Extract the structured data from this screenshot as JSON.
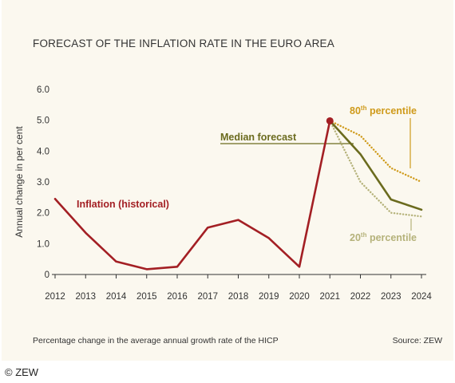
{
  "title": "FORECAST OF THE INFLATION RATE IN THE EURO AREA",
  "note": "Percentage change in the average annual growth rate of the HICP",
  "source": "Source: ZEW",
  "copyright": "© ZEW",
  "colors": {
    "background": "#fbf8ef",
    "historical": "#a31f24",
    "median": "#6b6b1e",
    "p80": "#cf9a1a",
    "p20": "#b5b27a",
    "axis": "#333333"
  },
  "chart_data": {
    "type": "line",
    "ylabel": "Annual change in per cent",
    "xlabel": "",
    "ylim": [
      0,
      6
    ],
    "y_ticks": [
      "0",
      "1.0",
      "2.0",
      "3.0",
      "4.0",
      "5.0",
      "6.0"
    ],
    "x_ticks": [
      "2012",
      "2013",
      "2014",
      "2015",
      "2016",
      "2017",
      "2018",
      "2019",
      "2020",
      "2021",
      "2022",
      "2023",
      "2024"
    ],
    "grid": false,
    "series": [
      {
        "name": "Inflation (historical)",
        "color": "#a31f24",
        "style": "solid",
        "x": [
          2012,
          2013,
          2014,
          2015,
          2016,
          2017,
          2018,
          2019,
          2020,
          2021
        ],
        "y": [
          2.45,
          1.35,
          0.42,
          0.17,
          0.25,
          1.52,
          1.77,
          1.18,
          0.25,
          4.98
        ]
      },
      {
        "name": "Median forecast",
        "color": "#6b6b1e",
        "style": "solid",
        "x": [
          2021,
          2022,
          2023,
          2024
        ],
        "y": [
          4.98,
          3.9,
          2.43,
          2.1
        ]
      },
      {
        "name": "80th percentile",
        "color": "#cf9a1a",
        "style": "dotted",
        "x": [
          2021,
          2022,
          2023,
          2024
        ],
        "y": [
          4.98,
          4.5,
          3.45,
          3.0
        ]
      },
      {
        "name": "20th percentile",
        "color": "#b5b27a",
        "style": "dotted",
        "x": [
          2021,
          2022,
          2023,
          2024
        ],
        "y": [
          4.98,
          3.0,
          2.0,
          1.88
        ]
      }
    ],
    "annotations": [
      {
        "text": "Inflation (historical)",
        "color": "#a31f24"
      },
      {
        "text": "Median forecast",
        "color": "#6b6b1e"
      },
      {
        "text": "80",
        "sup": "th",
        "rest": " percentile",
        "color": "#cf9a1a"
      },
      {
        "text": "20",
        "sup": "th",
        "rest": " percentile",
        "color": "#b5b27a"
      }
    ]
  }
}
